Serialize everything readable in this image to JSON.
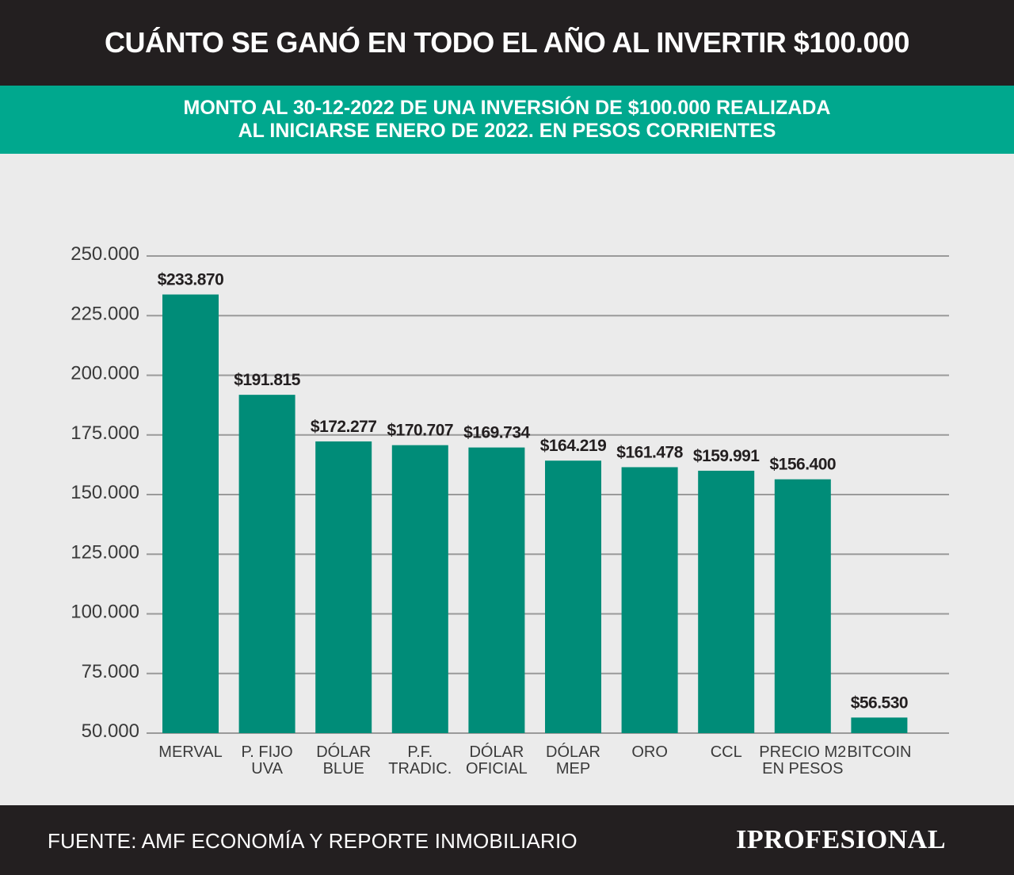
{
  "header": {
    "title": "CUÁNTO SE GANÓ EN TODO EL AÑO AL INVERTIR $100.000"
  },
  "subheader": {
    "line1": "MONTO AL 30-12-2022 DE UNA INVERSIÓN DE $100.000 REALIZADA",
    "line2": "AL INICIARSE ENERO DE 2022. EN PESOS CORRIENTES"
  },
  "footer": {
    "source": "FUENTE: AMF ECONOMÍA Y REPORTE INMOBILIARIO",
    "logo": "IPROFESIONAL"
  },
  "colors": {
    "bar": "#008c78",
    "teal_band": "#00a88e",
    "dark_band": "#231f20",
    "background": "#ebebeb",
    "grid": "#9a9a9a"
  },
  "chart_data": {
    "type": "bar",
    "title": "",
    "xlabel": "",
    "ylabel": "",
    "ylim": [
      50000,
      250000
    ],
    "yticks": [
      50000,
      75000,
      100000,
      125000,
      150000,
      175000,
      200000,
      225000,
      250000
    ],
    "ytick_labels": [
      "50.000",
      "75.000",
      "100.000",
      "125.000",
      "150.000",
      "175.000",
      "200.000",
      "225.000",
      "250.000"
    ],
    "grid": true,
    "categories": [
      [
        "MERVAL"
      ],
      [
        "P. FIJO",
        "UVA"
      ],
      [
        "DÓLAR",
        "BLUE"
      ],
      [
        "P.F.",
        "TRADIC."
      ],
      [
        "DÓLAR",
        "OFICIAL"
      ],
      [
        "DÓLAR",
        "MEP"
      ],
      [
        "ORO"
      ],
      [
        "CCL"
      ],
      [
        "PRECIO M2",
        "EN PESOS"
      ],
      [
        "BITCOIN"
      ]
    ],
    "values": [
      233870,
      191815,
      172277,
      170707,
      169734,
      164219,
      161478,
      159991,
      156400,
      56530
    ],
    "data_labels": [
      "$233.870",
      "$191.815",
      "$172.277",
      "$170.707",
      "$169.734",
      "$164.219",
      "$161.478",
      "$159.991",
      "$156.400",
      "$56.530"
    ]
  }
}
